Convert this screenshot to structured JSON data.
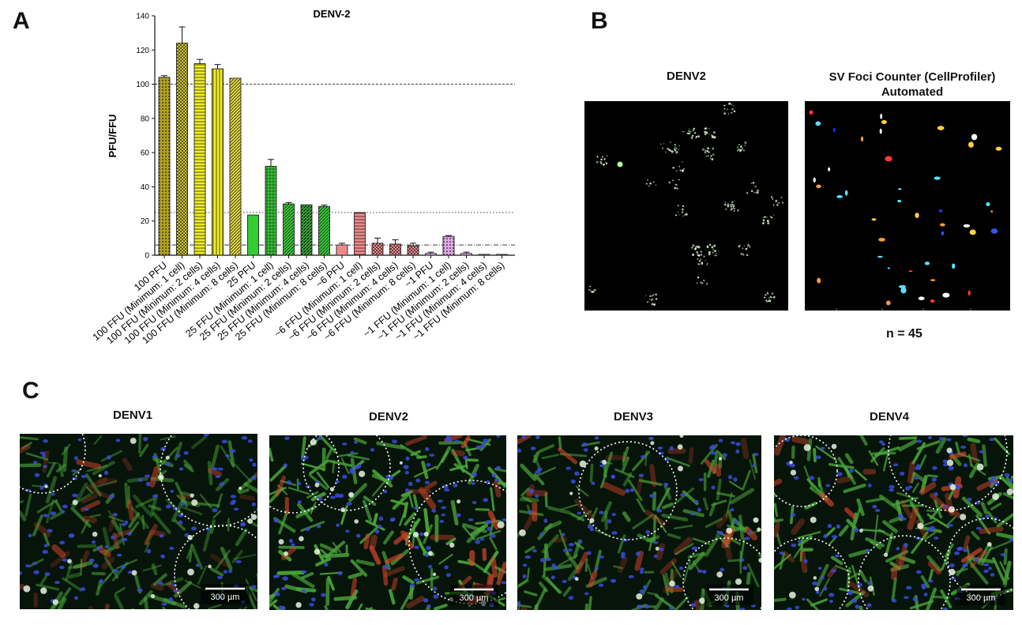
{
  "panels": {
    "a": "A",
    "b": "B",
    "c": "C"
  },
  "chart_data": {
    "type": "bar",
    "title": "DENV-2",
    "ylabel": "PFU/FFU",
    "xlabel": "",
    "ylim": [
      0,
      140
    ],
    "yticks": [
      0,
      20,
      40,
      60,
      80,
      100,
      120,
      140
    ],
    "grid": false,
    "reference_lines": [
      100,
      25,
      6
    ],
    "categories": [
      "100 PFU",
      "100 FFU (Minimum: 1 cell)",
      "100 FFU (Minimum: 2 cells)",
      "100 FFU (Minimum: 4 cells)",
      "100 FFU (Minimum: 8 cells)",
      "25 PFU",
      "25 FFU (Minimum: 1 cell)",
      "25 FFU (Minimum: 2 cells)",
      "25 FFU (Minimum: 4 cells)",
      "25 FFU (Minimum: 8 cells)",
      "~6 PFU",
      "~6 FFU (Minimum: 1 cell)",
      "~6 FFU (Minimum: 2 cells)",
      "~6 FFU (Minimum: 4 cells)",
      "~6 FFU (Minimum: 8 cells)",
      "~1 PFU",
      "~1 FFU (Minimum: 1 cell)",
      "~1 FFU (Minimum: 2 cells)",
      "~1 FFU (Minimum: 4 cells)",
      "~1 FFU (Minimum: 8 cells)"
    ],
    "values": [
      104,
      124,
      112,
      109,
      103.5,
      23.5,
      52,
      30,
      29.5,
      28.5,
      6,
      25,
      7,
      6.5,
      5.5,
      1,
      11,
      1,
      0.5,
      0.5
    ],
    "errors": [
      1,
      9.5,
      2.5,
      2.5,
      0,
      0,
      4,
      0.8,
      0,
      0.8,
      1,
      0,
      3,
      2.5,
      1.5,
      0.8,
      0.5,
      0.8,
      0,
      0
    ],
    "colors": [
      "#b3a01f",
      "#d6cc2a",
      "#f2ef1e",
      "#f2ef1e",
      "#e5d93a",
      "#33cc33",
      "#33cc33",
      "#33cc33",
      "#33cc33",
      "#33cc33",
      "#f08a8a",
      "#f08a8a",
      "#f08a8a",
      "#f08a8a",
      "#f08a8a",
      "#e3a6e8",
      "#e3a6e8",
      "#e3a6e8",
      "#e3a6e8",
      "#e3a6e8"
    ],
    "patterns": [
      "dots",
      "check",
      "hlines",
      "vlines",
      "diag",
      "solid",
      "grid",
      "diag",
      "diag-thick",
      "diag",
      "solid",
      "hlines",
      "check",
      "check",
      "check",
      "solid",
      "dots",
      "solid",
      "solid",
      "solid"
    ]
  },
  "panel_b": {
    "left_title": "DENV2",
    "right_title_line1": "SV Foci Counter (CellProfiler)",
    "right_title_line2": "Automated",
    "count_label": "n = 45"
  },
  "panel_c": {
    "images": [
      {
        "title": "DENV1",
        "scale": "300 µm"
      },
      {
        "title": "DENV2",
        "scale": "300 µm"
      },
      {
        "title": "DENV3",
        "scale": "300 µm"
      },
      {
        "title": "DENV4",
        "scale": "300 µm"
      }
    ]
  },
  "colors": {
    "nuclei": "#3a4bd8",
    "cytoskeleton": "#4aa83a",
    "infected": "#d8452a"
  }
}
